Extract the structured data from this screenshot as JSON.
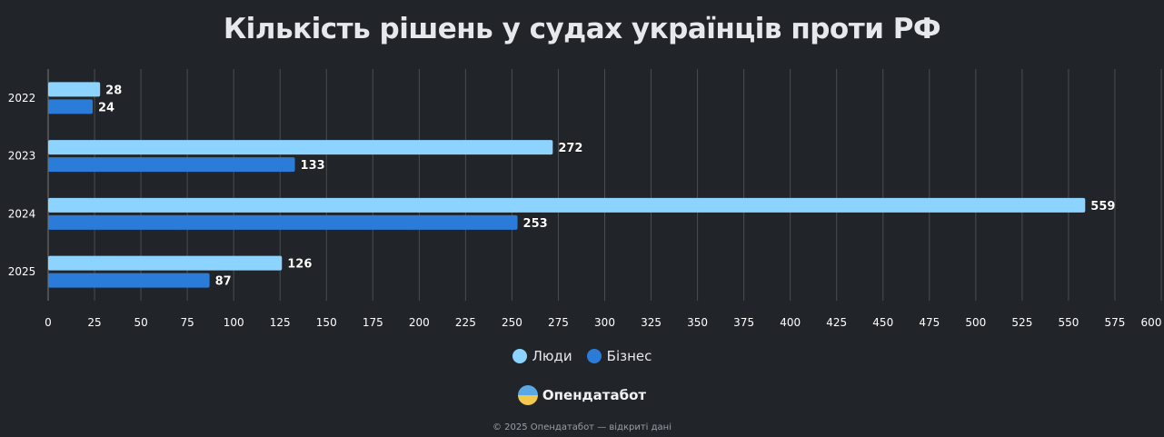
{
  "chart_data": {
    "type": "bar",
    "orientation": "horizontal",
    "title": "Кількість рішень у судах українців проти РФ",
    "categories": [
      "2022",
      "2023",
      "2024",
      "2025"
    ],
    "series": [
      {
        "name": "Люди",
        "color": "#8dd3ff",
        "values": [
          28,
          272,
          559,
          126
        ]
      },
      {
        "name": "Бізнес",
        "color": "#2b7cd8",
        "values": [
          24,
          133,
          253,
          87
        ]
      }
    ],
    "xlim": [
      0,
      600
    ],
    "xticks": [
      0,
      25,
      50,
      75,
      100,
      125,
      150,
      175,
      200,
      225,
      250,
      275,
      300,
      325,
      350,
      375,
      400,
      425,
      450,
      475,
      500,
      525,
      550,
      575,
      600
    ],
    "grid": true,
    "legend_position": "bottom",
    "data_labels": true
  },
  "brand": {
    "name": "Опендатабот"
  },
  "footer": {
    "text": "© 2025 Опендатабот — відкриті дані"
  }
}
